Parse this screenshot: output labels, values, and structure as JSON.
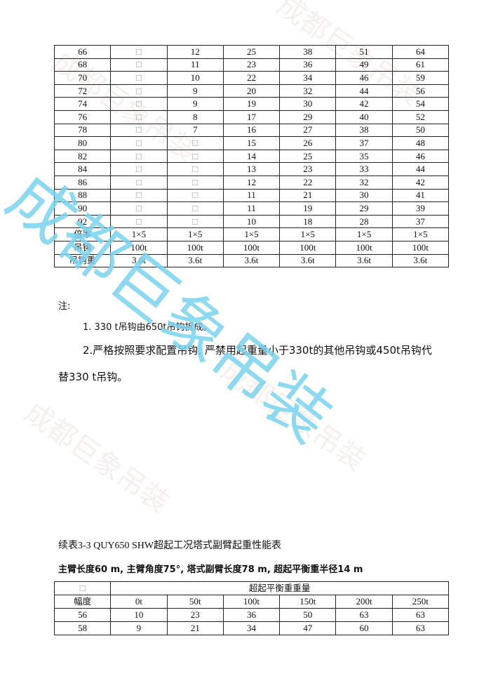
{
  "table1": {
    "rows": [
      [
        "66",
        "□",
        "12",
        "25",
        "38",
        "51",
        "64"
      ],
      [
        "68",
        "□",
        "11",
        "23",
        "36",
        "49",
        "61"
      ],
      [
        "70",
        "□",
        "10",
        "22",
        "34",
        "46",
        "59"
      ],
      [
        "72",
        "□",
        "9",
        "20",
        "32",
        "44",
        "56"
      ],
      [
        "74",
        "□",
        "9",
        "19",
        "30",
        "42",
        "54"
      ],
      [
        "76",
        "□",
        "8",
        "17",
        "29",
        "40",
        "52"
      ],
      [
        "78",
        "□",
        "7",
        "16",
        "27",
        "38",
        "50"
      ],
      [
        "80",
        "□",
        "□",
        "15",
        "26",
        "37",
        "48"
      ],
      [
        "82",
        "□",
        "□",
        "14",
        "25",
        "35",
        "46"
      ],
      [
        "84",
        "□",
        "□",
        "13",
        "23",
        "33",
        "44"
      ],
      [
        "86",
        "□",
        "□",
        "12",
        "22",
        "32",
        "42"
      ],
      [
        "88",
        "□",
        "□",
        "11",
        "21",
        "30",
        "41"
      ],
      [
        "90",
        "□",
        "□",
        "11",
        "19",
        "29",
        "39"
      ],
      [
        "92",
        "□",
        "□",
        "10",
        "18",
        "28",
        "37"
      ],
      [
        "倍率",
        "1×5",
        "1×5",
        "1×5",
        "1×5",
        "1×5",
        "1×5"
      ],
      [
        "吊钩",
        "100t",
        "100t",
        "100t",
        "100t",
        "100t",
        "100t"
      ],
      [
        "吊钩重",
        "3.6t",
        "3.6t",
        "3.6t",
        "3.6t",
        "3.6t",
        "3.6t"
      ]
    ]
  },
  "notes": {
    "heading": "注:",
    "item1": "1. 330 t吊钩由650t吊钩拆成。",
    "item2_line1": "2.严格按照要求配置吊钩, 严禁用起重量小于330t的其他吊钩或450t吊钩代",
    "item2_line2": "替330 t吊钩。"
  },
  "table2": {
    "caption": "续表3-3 QUY650 SHW超起工况塔式副臂起重性能表",
    "subtitle": "主臂长度60 m, 主臂角度75°, 塔式副臂长度78 m, 超起平衡重半径14 m",
    "corner": "□",
    "group_header": "超起平衡重重量",
    "row_header": "幅度",
    "columns": [
      "0t",
      "50t",
      "100t",
      "150t",
      "200t",
      "250t"
    ],
    "rows": [
      [
        "56",
        "10",
        "23",
        "36",
        "50",
        "63",
        "63"
      ],
      [
        "58",
        "9",
        "21",
        "34",
        "47",
        "60",
        "63"
      ]
    ]
  },
  "watermark": {
    "text": "成都巨象吊装",
    "color": "#78d2f0"
  }
}
